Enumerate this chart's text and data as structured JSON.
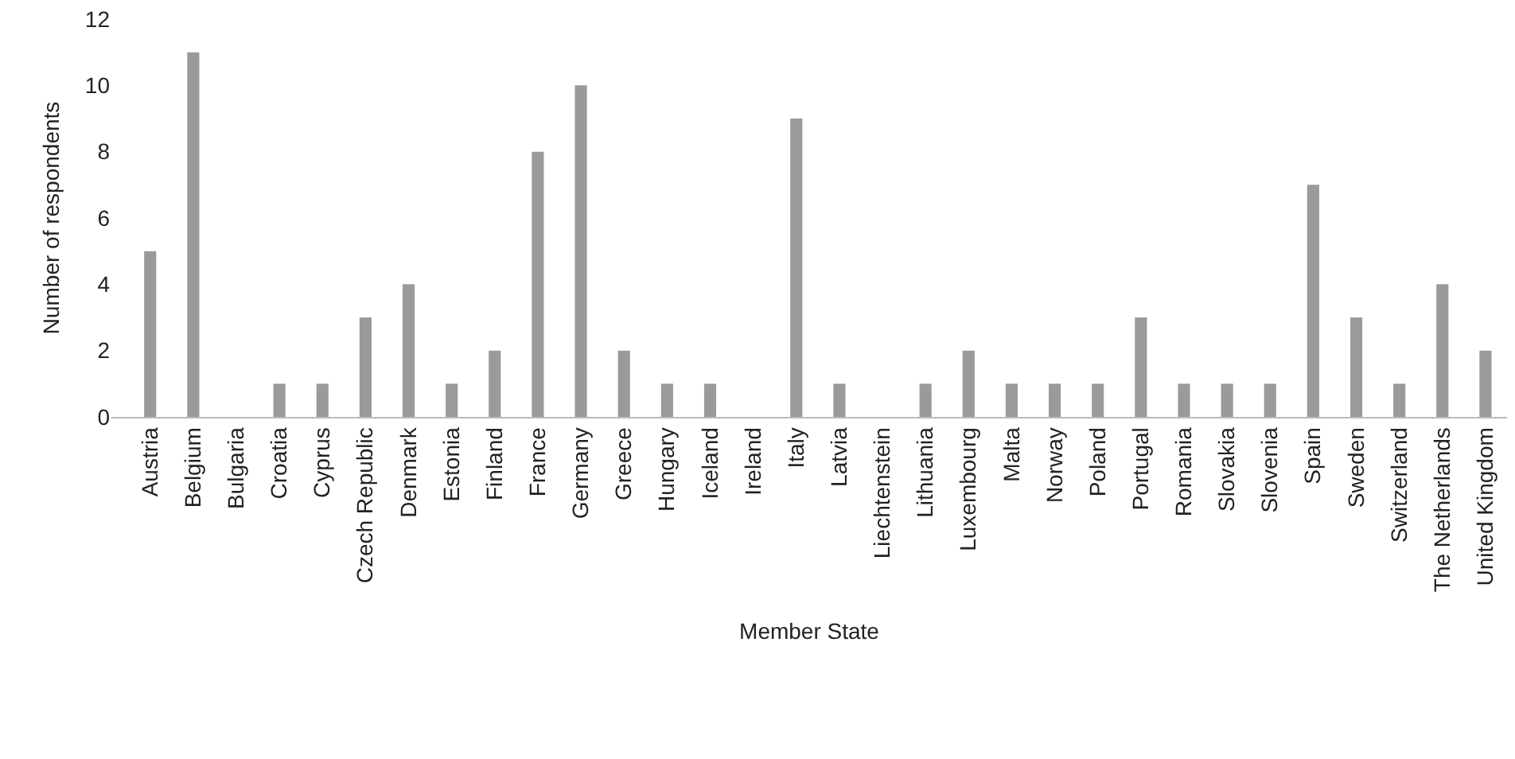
{
  "chart_data": {
    "type": "bar",
    "xlabel": "Member State",
    "ylabel": "Number of respondents",
    "categories": [
      "Austria",
      "Belgium",
      "Bulgaria",
      "Croatia",
      "Cyprus",
      "Czech Republic",
      "Denmark",
      "Estonia",
      "Finland",
      "France",
      "Germany",
      "Greece",
      "Hungary",
      "Iceland",
      "Ireland",
      "Italy",
      "Latvia",
      "Liechtenstein",
      "Lithuania",
      "Luxembourg",
      "Malta",
      "Norway",
      "Poland",
      "Portugal",
      "Romania",
      "Slovakia",
      "Slovenia",
      "Spain",
      "Sweden",
      "Switzerland",
      "The Netherlands",
      "United Kingdom"
    ],
    "values": [
      5,
      11,
      0,
      1,
      1,
      3,
      4,
      1,
      2,
      8,
      10,
      2,
      1,
      1,
      0,
      9,
      1,
      0,
      1,
      2,
      1,
      1,
      1,
      3,
      1,
      1,
      1,
      7,
      3,
      1,
      4,
      2
    ],
    "color": "#9a9a9a",
    "ylim": [
      0,
      12
    ],
    "yticks": [
      0,
      2,
      4,
      6,
      8,
      10,
      12
    ],
    "grid": false,
    "legend": false
  }
}
